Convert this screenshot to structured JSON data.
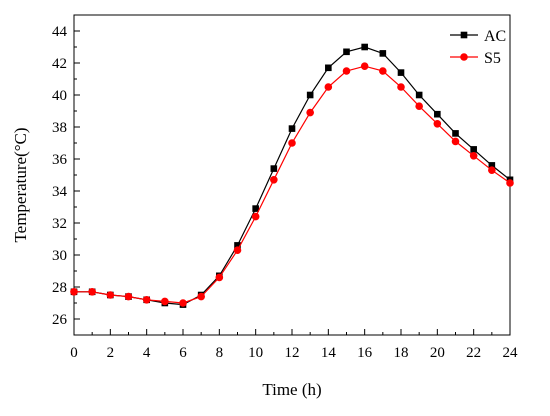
{
  "chart_data": {
    "type": "line",
    "xlabel": "Time (h)",
    "ylabel": "Temperature(°C)",
    "xlim": [
      0,
      24
    ],
    "ylim": [
      25,
      45
    ],
    "xticks": [
      0,
      2,
      4,
      6,
      8,
      10,
      12,
      14,
      16,
      18,
      20,
      22,
      24
    ],
    "yticks": [
      26,
      28,
      30,
      32,
      34,
      36,
      38,
      40,
      42,
      44
    ],
    "grid": false,
    "legend_position": "top-right",
    "x": [
      0,
      1,
      2,
      3,
      4,
      5,
      6,
      7,
      8,
      9,
      10,
      11,
      12,
      13,
      14,
      15,
      16,
      17,
      18,
      19,
      20,
      21,
      22,
      23,
      24
    ],
    "series": [
      {
        "name": "AC",
        "color": "#000000",
        "marker": "square",
        "values": [
          27.7,
          27.7,
          27.5,
          27.4,
          27.2,
          27.0,
          26.9,
          27.5,
          28.7,
          30.6,
          32.9,
          35.4,
          37.9,
          40.0,
          41.7,
          42.7,
          43.0,
          42.6,
          41.4,
          40.0,
          38.8,
          37.6,
          36.6,
          35.6,
          34.7
        ]
      },
      {
        "name": "S5",
        "color": "#ff0000",
        "marker": "circle",
        "values": [
          27.7,
          27.7,
          27.5,
          27.4,
          27.2,
          27.1,
          27.0,
          27.4,
          28.6,
          30.3,
          32.4,
          34.7,
          37.0,
          38.9,
          40.5,
          41.5,
          41.8,
          41.5,
          40.5,
          39.3,
          38.2,
          37.1,
          36.2,
          35.3,
          34.5
        ]
      }
    ]
  }
}
